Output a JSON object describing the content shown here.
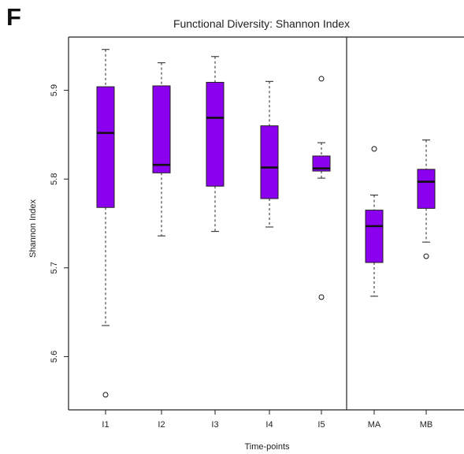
{
  "panel_label": "F",
  "colors": {
    "box_fill": "#8a00ef",
    "box_stroke": "#222222",
    "axis": "#222222"
  },
  "chart_data": {
    "type": "boxplot",
    "title": "Functional Diversity: Shannon Index",
    "xlabel": "Time-points",
    "ylabel": "Shannon Index",
    "ylim": [
      5.54,
      5.96
    ],
    "yticks": [
      5.6,
      5.7,
      5.8,
      5.9
    ],
    "ytick_labels": [
      "5.6",
      "5.7",
      "5.8",
      "5.9"
    ],
    "categories": [
      "I1",
      "I2",
      "I3",
      "I4",
      "I5",
      "MA",
      "MB"
    ],
    "separator_after_category": "I5",
    "grid": false,
    "boxes": [
      {
        "name": "I1",
        "whisker_low": 5.635,
        "q1": 5.768,
        "median": 5.852,
        "q3": 5.904,
        "whisker_high": 5.946,
        "outliers": [
          5.557
        ]
      },
      {
        "name": "I2",
        "whisker_low": 5.736,
        "q1": 5.807,
        "median": 5.816,
        "q3": 5.905,
        "whisker_high": 5.931,
        "outliers": []
      },
      {
        "name": "I3",
        "whisker_low": 5.741,
        "q1": 5.792,
        "median": 5.869,
        "q3": 5.909,
        "whisker_high": 5.938,
        "outliers": []
      },
      {
        "name": "I4",
        "whisker_low": 5.746,
        "q1": 5.778,
        "median": 5.813,
        "q3": 5.86,
        "whisker_high": 5.91,
        "outliers": []
      },
      {
        "name": "I5",
        "whisker_low": 5.801,
        "q1": 5.809,
        "median": 5.812,
        "q3": 5.826,
        "whisker_high": 5.841,
        "outliers": [
          5.913,
          5.667
        ]
      },
      {
        "name": "MA",
        "whisker_low": 5.668,
        "q1": 5.706,
        "median": 5.747,
        "q3": 5.765,
        "whisker_high": 5.782,
        "outliers": [
          5.834
        ]
      },
      {
        "name": "MB",
        "whisker_low": 5.729,
        "q1": 5.767,
        "median": 5.797,
        "q3": 5.811,
        "whisker_high": 5.844,
        "outliers": [
          5.713
        ]
      }
    ]
  }
}
